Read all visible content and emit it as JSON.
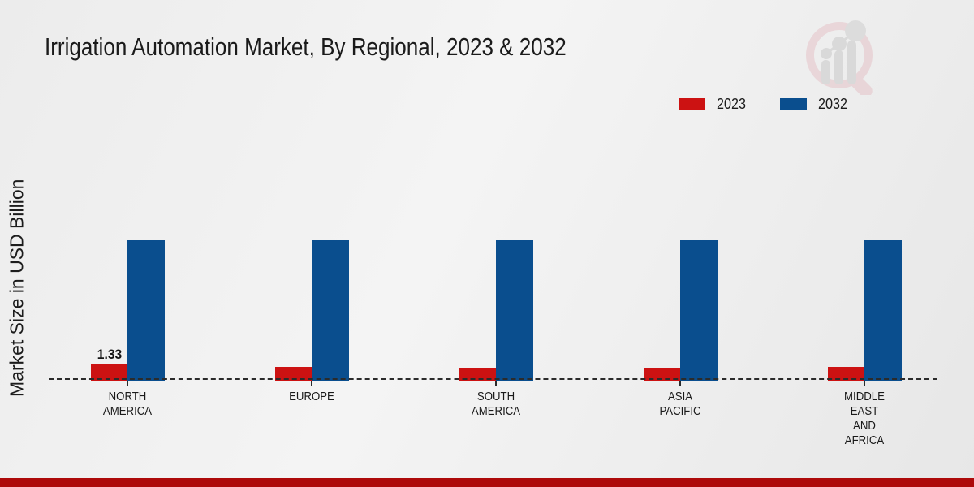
{
  "title": "Irrigation Automation Market, By Regional, 2023 & 2032",
  "ylabel": "Market Size in USD Billion",
  "legend": [
    {
      "label": "2023",
      "color": "#cc1212"
    },
    {
      "label": "2032",
      "color": "#0a4e8e"
    }
  ],
  "colors": {
    "bar_2023": "#cc1212",
    "bar_2032": "#0a4e8e",
    "baseline": "#2b2b2b",
    "footer_bar": "#ad0a0a",
    "text": "#1a1a1a",
    "logo_pink": "#e5c3c8",
    "logo_gray": "#c9c9c9"
  },
  "icons": {
    "logo": "magnifier-bar-chart-logo-watermark"
  },
  "chart_data": {
    "type": "bar",
    "title": "Irrigation Automation Market, By Regional, 2023 & 2032",
    "xlabel": "",
    "ylabel": "Market Size in USD Billion",
    "categories": [
      "NORTH AMERICA",
      "EUROPE",
      "SOUTH AMERICA",
      "ASIA PACIFIC",
      "MIDDLE EAST AND AFRICA"
    ],
    "categories_lines": [
      [
        "NORTH",
        "AMERICA"
      ],
      [
        "EUROPE"
      ],
      [
        "SOUTH",
        "AMERICA"
      ],
      [
        "ASIA",
        "PACIFIC"
      ],
      [
        "MIDDLE",
        "EAST",
        "AND",
        "AFRICA"
      ]
    ],
    "series": [
      {
        "name": "2023",
        "color": "#cc1212",
        "values": [
          1.33,
          1.12,
          0.97,
          1.05,
          1.12
        ]
      },
      {
        "name": "2032",
        "color": "#0a4e8e",
        "values": [
          12.75,
          12.75,
          12.75,
          12.75,
          12.75
        ]
      }
    ],
    "data_labels": [
      {
        "text": "1.33",
        "category_index": 0,
        "series_index": 0
      }
    ],
    "ylim": [
      0,
      12.75
    ],
    "grid": false,
    "baseline_style": "dashed",
    "legend_position": "top-right",
    "axis_ticks_visible": false
  }
}
